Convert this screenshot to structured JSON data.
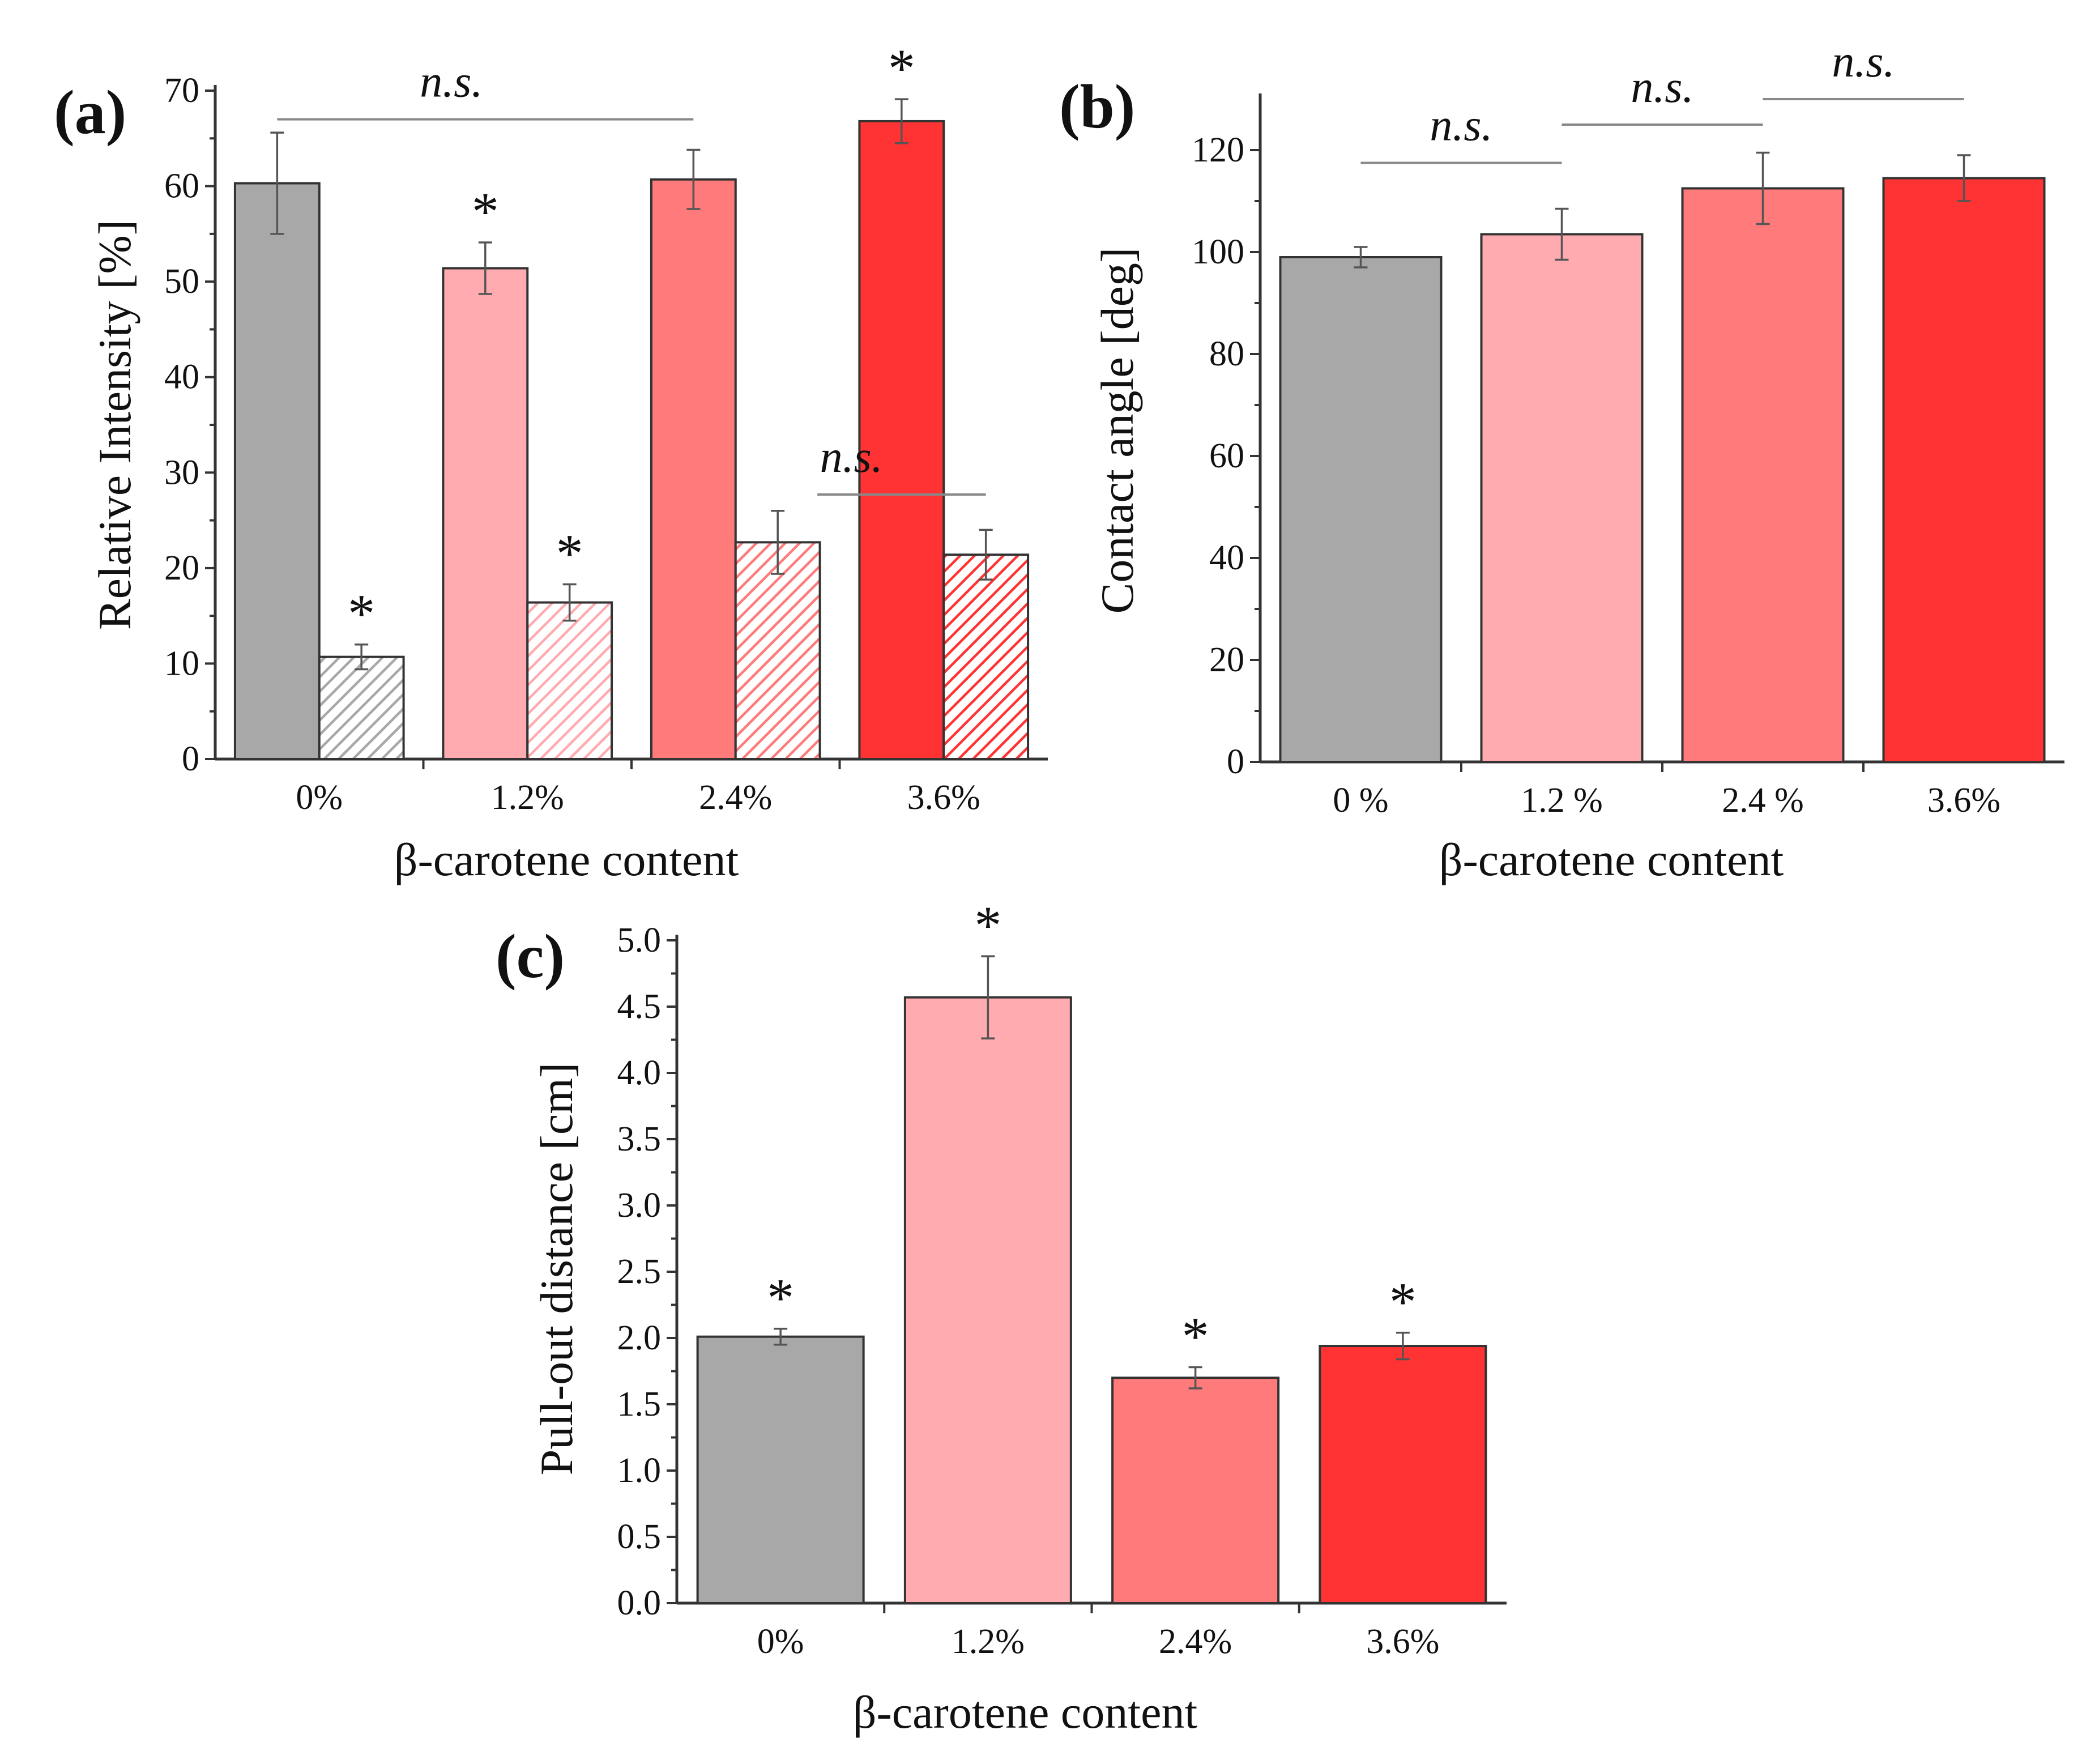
{
  "chart_data": [
    {
      "panel": "(a)",
      "type": "bar",
      "xlabel": "β-carotene content",
      "ylabel": "Relative Intensity [%]",
      "ylim": [
        0,
        70
      ],
      "yticks": [
        0,
        10,
        20,
        30,
        40,
        50,
        60,
        70
      ],
      "categories": [
        "0%",
        "1.2%",
        "2.4%",
        "3.6%"
      ],
      "series": [
        {
          "name": "solid",
          "pattern": "solid",
          "values": [
            60.3,
            51.4,
            60.7,
            66.8
          ],
          "errors": [
            5.3,
            2.7,
            3.1,
            2.3
          ],
          "stars": [
            "",
            "*",
            "",
            "*"
          ]
        },
        {
          "name": "hatched",
          "pattern": "hatched",
          "values": [
            10.7,
            16.4,
            22.7,
            21.4
          ],
          "errors": [
            1.3,
            1.9,
            3.3,
            2.6
          ],
          "stars": [
            "*",
            "*",
            "",
            ""
          ]
        }
      ],
      "colors": [
        "#a8a8a8",
        "#ffabb0",
        "#ff7a7a",
        "#ff3333"
      ],
      "annotations": [
        {
          "text": "n.s.",
          "from": "0%",
          "to": "2.4%",
          "series": "solid"
        },
        {
          "text": "n.s.",
          "from": "2.4%",
          "to": "3.6%",
          "series": "hatched"
        }
      ]
    },
    {
      "panel": "(b)",
      "type": "bar",
      "xlabel": "β-carotene content",
      "ylabel": "Contact angle [deg]",
      "ylim": [
        0,
        130
      ],
      "yticks": [
        0,
        20,
        40,
        60,
        80,
        100,
        120
      ],
      "categories": [
        "0 %",
        "1.2 %",
        "2.4 %",
        "3.6%"
      ],
      "values": [
        99,
        103.5,
        112.5,
        114.5
      ],
      "errors": [
        2,
        5,
        7,
        4.5
      ],
      "colors": [
        "#a8a8a8",
        "#ffabb0",
        "#ff7a7a",
        "#ff3333"
      ],
      "annotations": [
        {
          "text": "n.s.",
          "from": "0 %",
          "to": "1.2 %"
        },
        {
          "text": "n.s.",
          "from": "1.2 %",
          "to": "2.4 %"
        },
        {
          "text": "n.s.",
          "from": "2.4 %",
          "to": "3.6%"
        }
      ]
    },
    {
      "panel": "(c)",
      "type": "bar",
      "xlabel": "β-carotene content",
      "ylabel": "Pull-out distance [cm]",
      "ylim": [
        0,
        5
      ],
      "yticks": [
        0.0,
        0.5,
        1.0,
        1.5,
        2.0,
        2.5,
        3.0,
        3.5,
        4.0,
        4.5,
        5.0
      ],
      "categories": [
        "0%",
        "1.2%",
        "2.4%",
        "3.6%"
      ],
      "values": [
        2.01,
        4.57,
        1.7,
        1.94
      ],
      "errors": [
        0.06,
        0.31,
        0.08,
        0.1
      ],
      "stars": [
        "*",
        "*",
        "*",
        "*"
      ],
      "colors": [
        "#a8a8a8",
        "#ffabb0",
        "#ff7a7a",
        "#ff3333"
      ]
    }
  ]
}
